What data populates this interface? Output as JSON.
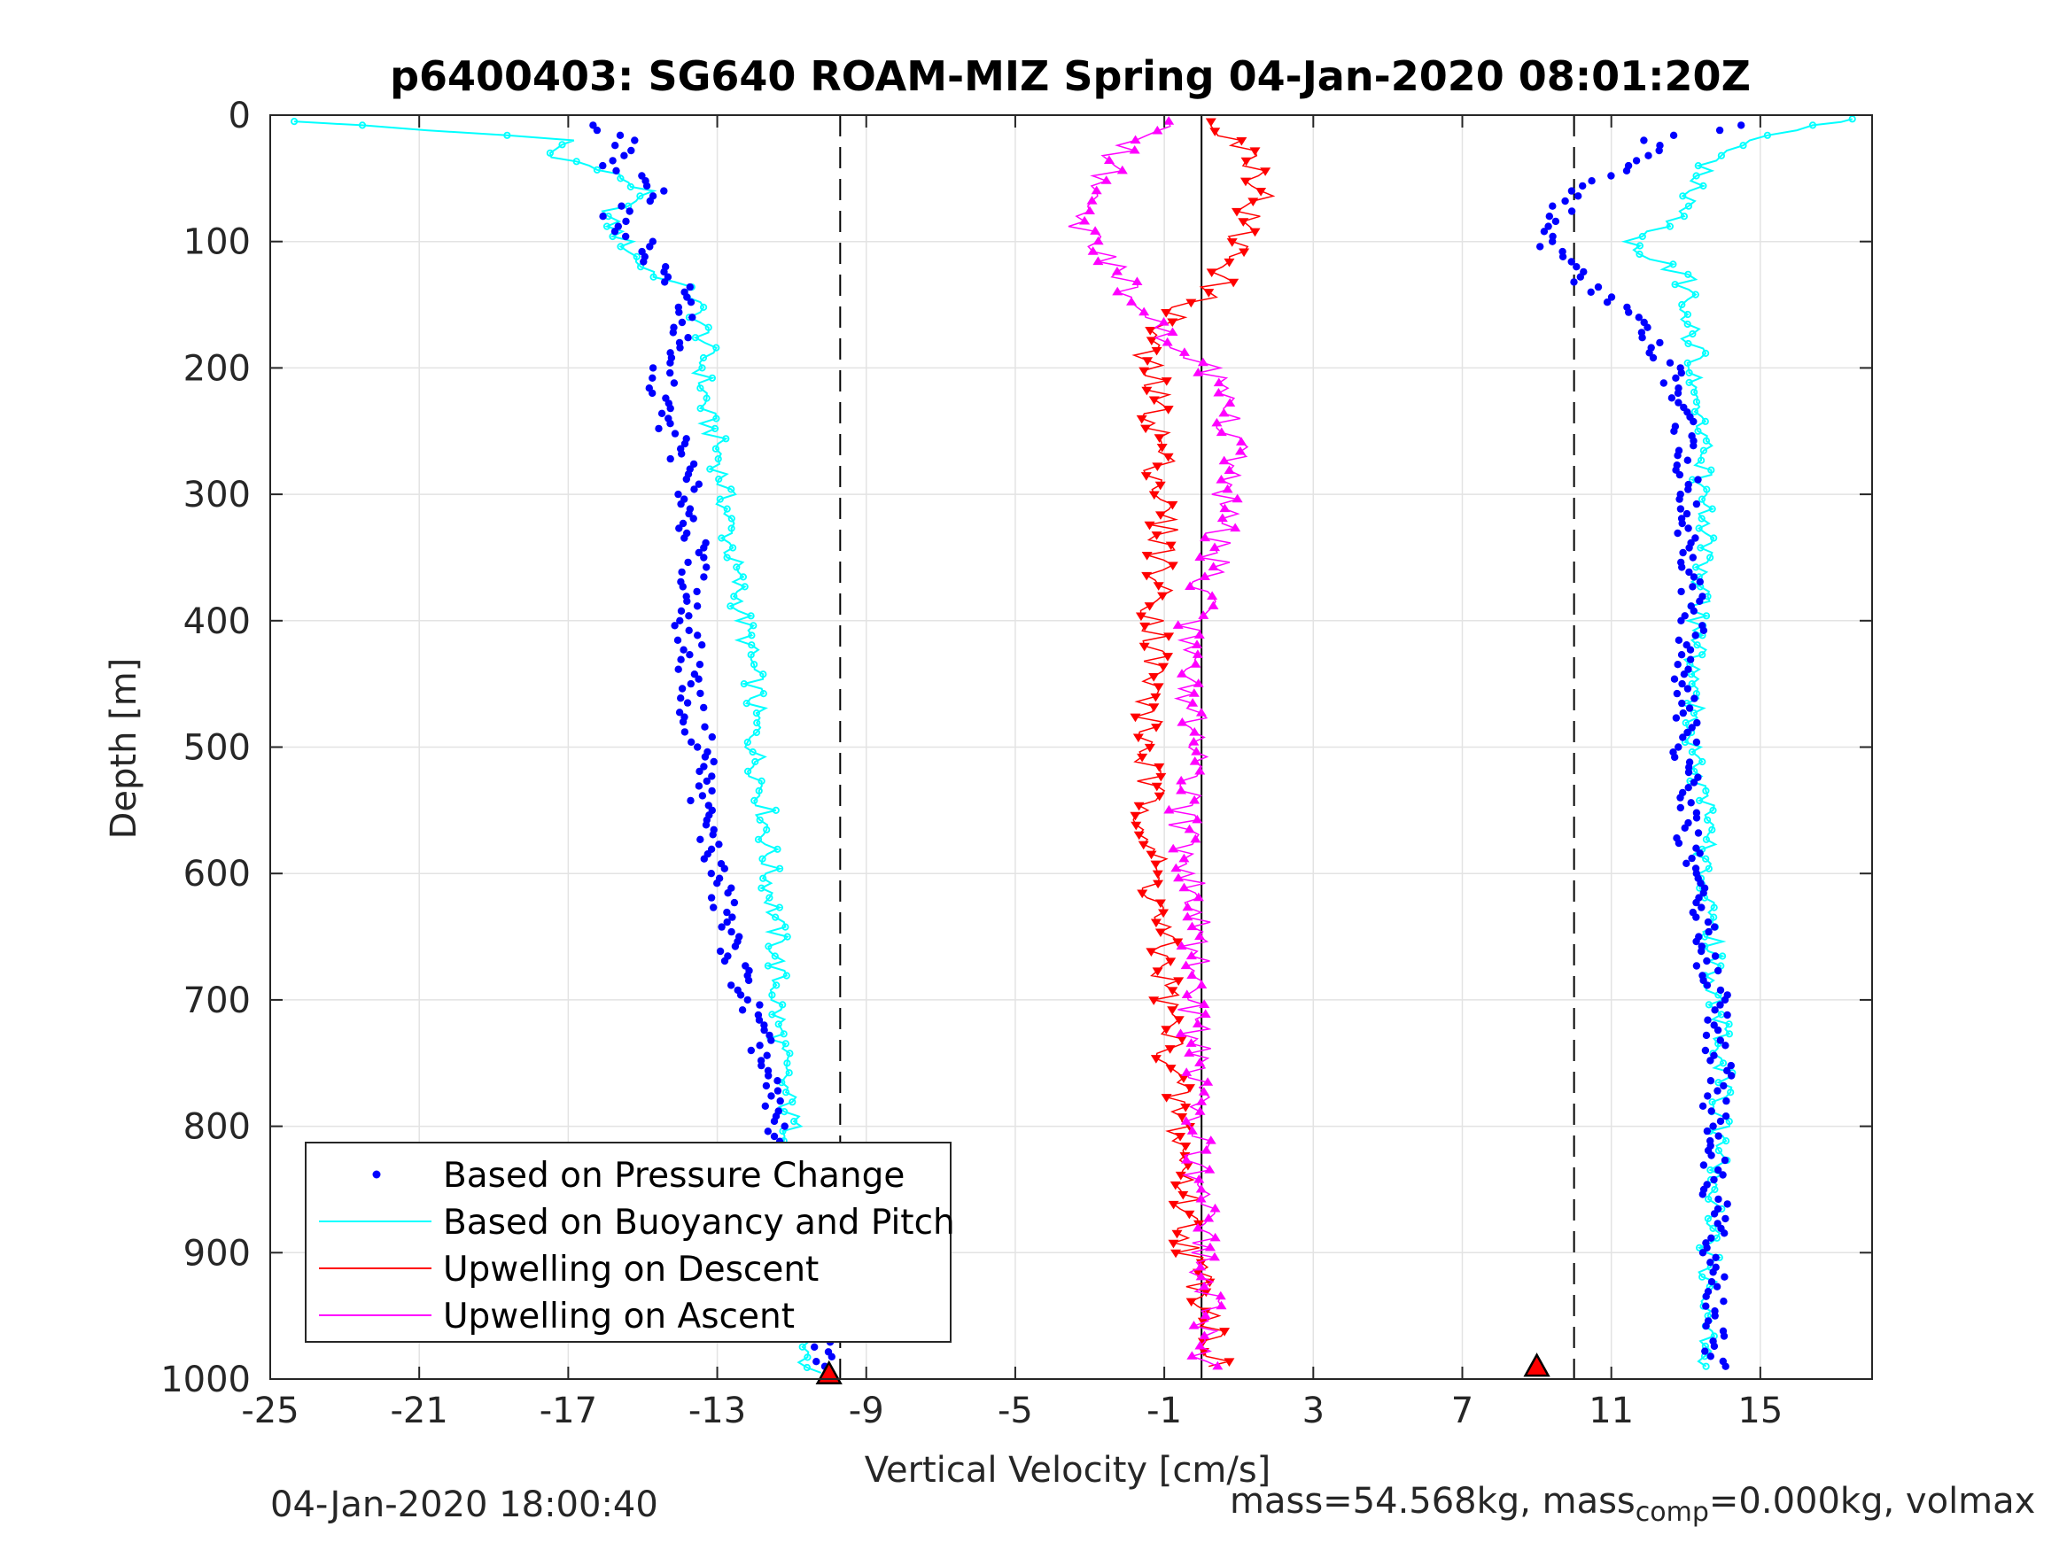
{
  "chart_data": {
    "type": "scatter",
    "title": "p6400403: SG640 ROAM-MIZ Spring 04-Jan-2020 08:01:20Z",
    "xlabel": "Vertical Velocity [cm/s]",
    "ylabel": "Depth [m]",
    "xlim": [
      -25,
      18
    ],
    "ylim": [
      0,
      1000
    ],
    "y_reversed": true,
    "grid": true,
    "xticks": [
      "-25",
      "-21",
      "-17",
      "-13",
      "-9",
      "-5",
      "-1",
      "3",
      "7",
      "11",
      "15"
    ],
    "yticks": [
      "0",
      "100",
      "200",
      "300",
      "400",
      "500",
      "600",
      "700",
      "800",
      "900",
      "1000"
    ],
    "reference_lines": [
      {
        "x": -9.7,
        "style": "dashed"
      },
      {
        "x": 0.0,
        "style": "solid"
      },
      {
        "x": 10.0,
        "style": "dashed"
      }
    ],
    "legend": {
      "position": "lower-left",
      "entries": [
        "Based on Pressure Change",
        "Based on Buoyancy and Pitch",
        "Upwelling on Descent",
        "Upwelling on Ascent"
      ]
    },
    "series": [
      {
        "name": "Based on Pressure Change",
        "color": "#0000ff",
        "profiles": [
          {
            "phase": "descent",
            "depth": [
              8,
              20,
              40,
              60,
              80,
              100,
              120,
              140,
              160,
              180,
              200,
              220,
              240,
              260,
              300,
              350,
              400,
              450,
              480,
              500,
              550,
              600,
              650,
              700,
              740,
              780,
              820,
              880,
              940,
              990
            ],
            "velocity": [
              -16.6,
              -15.4,
              -16.0,
              -14.2,
              -16.0,
              -15.0,
              -14.6,
              -13.9,
              -13.8,
              -14.2,
              -14.5,
              -14.5,
              -14.5,
              -14.0,
              -13.8,
              -13.6,
              -13.8,
              -13.7,
              -13.7,
              -13.3,
              -13.4,
              -13.0,
              -12.7,
              -12.2,
              -11.8,
              -11.6,
              -11.2,
              -10.6,
              -10.2,
              -10.1
            ]
          },
          {
            "phase": "ascent",
            "depth": [
              990,
              950,
              900,
              850,
              800,
              760,
              700,
              650,
              600,
              560,
              500,
              450,
              400,
              350,
              300,
              250,
              220,
              200,
              180,
              160,
              140,
              120,
              100,
              80,
              60,
              40,
              20,
              8
            ],
            "velocity": [
              13.8,
              13.9,
              13.8,
              13.8,
              13.7,
              13.9,
              13.8,
              13.5,
              13.2,
              13.0,
              13.0,
              13.0,
              13.2,
              13.2,
              13.0,
              13.0,
              12.7,
              12.6,
              12.0,
              11.5,
              10.7,
              9.8,
              9.3,
              9.5,
              10.0,
              11.8,
              12.2,
              14.5
            ]
          }
        ]
      },
      {
        "name": "Based on Buoyancy and Pitch",
        "color": "#00ffff",
        "profiles": [
          {
            "phase": "descent",
            "depth": [
              5,
              8,
              20,
              30,
              40,
              50,
              60,
              80,
              100,
              120,
              140,
              160,
              180,
              200,
              240,
              260,
              300,
              350,
              400,
              450,
              500,
              550,
              600,
              650,
              700,
              750,
              800,
              850,
              900,
              950,
              995
            ],
            "velocity": [
              -24.5,
              -22.5,
              -17.0,
              -17.5,
              -16.5,
              -15.5,
              -15.0,
              -16.0,
              -15.5,
              -15.0,
              -13.7,
              -13.5,
              -13.3,
              -13.4,
              -13.3,
              -13.0,
              -12.8,
              -12.6,
              -12.3,
              -12.0,
              -12.0,
              -11.7,
              -11.6,
              -11.4,
              -11.4,
              -11.3,
              -11.0,
              -10.8,
              -10.7,
              -10.6,
              -10.5
            ]
          },
          {
            "phase": "ascent",
            "depth": [
              990,
              950,
              900,
              850,
              800,
              750,
              700,
              650,
              600,
              550,
              500,
              450,
              400,
              350,
              300,
              250,
              200,
              150,
              130,
              110,
              100,
              80,
              60,
              40,
              20,
              8,
              3
            ],
            "velocity": [
              13.5,
              13.7,
              13.6,
              13.8,
              13.9,
              14.0,
              13.8,
              13.7,
              13.5,
              13.5,
              13.2,
              13.2,
              13.3,
              13.5,
              13.4,
              13.5,
              13.3,
              13.0,
              13.0,
              12.0,
              11.5,
              13.0,
              13.2,
              13.5,
              14.5,
              16.5,
              17.5
            ]
          }
        ]
      },
      {
        "name": "Upwelling on Descent",
        "color": "#ff0000",
        "depth": [
          5,
          20,
          40,
          60,
          80,
          100,
          120,
          140,
          160,
          170,
          190,
          210,
          240,
          270,
          300,
          340,
          380,
          420,
          460,
          500,
          550,
          600,
          650,
          700,
          750,
          800,
          850,
          900,
          950,
          990
        ],
        "velocity": [
          0.5,
          1.0,
          1.5,
          1.7,
          1.2,
          1.0,
          0.8,
          0.2,
          -0.8,
          -1.2,
          -1.6,
          -1.3,
          -1.2,
          -1.1,
          -1.1,
          -1.0,
          -1.2,
          -1.2,
          -1.4,
          -1.5,
          -1.4,
          -1.3,
          -1.1,
          -0.9,
          -0.8,
          -0.6,
          -0.4,
          -0.3,
          0.3,
          0.4
        ]
      },
      {
        "name": "Upwelling on Ascent",
        "color": "#ff00ff",
        "depth": [
          990,
          950,
          900,
          850,
          800,
          750,
          700,
          650,
          600,
          550,
          500,
          450,
          400,
          350,
          300,
          270,
          240,
          220,
          200,
          180,
          160,
          140,
          120,
          100,
          80,
          60,
          40,
          20,
          5
        ],
        "velocity": [
          0.0,
          0.1,
          0.1,
          0.0,
          -0.2,
          -0.2,
          -0.2,
          -0.1,
          -0.3,
          -0.5,
          -0.2,
          -0.3,
          -0.2,
          0.4,
          0.6,
          0.8,
          0.8,
          0.4,
          0.1,
          -0.8,
          -1.2,
          -2.0,
          -2.4,
          -3.0,
          -3.5,
          -2.8,
          -2.5,
          -2.0,
          -0.5
        ]
      }
    ],
    "apogee_markers": [
      {
        "color": "#ff0000",
        "x": -10.0,
        "y": 996
      },
      {
        "color": "#ff0000",
        "x": 9.0,
        "y": 990
      }
    ]
  },
  "footer": {
    "left": "04-Jan-2020 18:00:40",
    "right_pre": "mass=54.568kg, mass",
    "right_sub": "comp",
    "right_post": "=0.000kg, volmax"
  }
}
